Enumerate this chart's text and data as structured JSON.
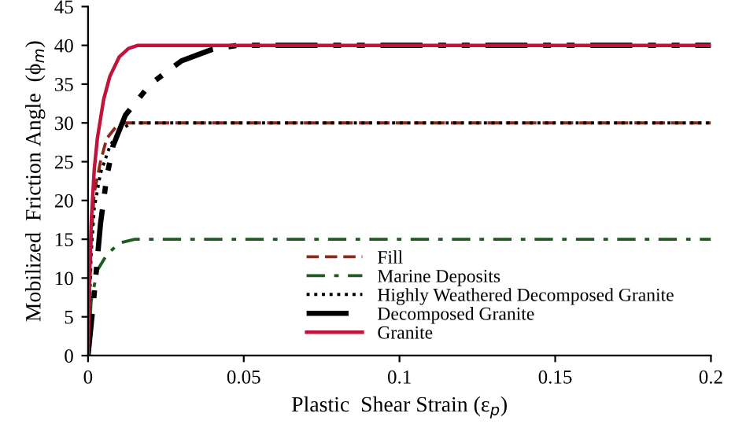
{
  "chart_data": {
    "type": "line",
    "xlabel": "Plastic  Shear Strain (ε$_{p}$)",
    "ylabel": "Mobilized  Friction Angle  (ϕ$_{m}$)",
    "xlim": [
      0,
      0.2
    ],
    "xticks": [
      0,
      0.05,
      0.1,
      0.15,
      0.2
    ],
    "ylim": [
      0,
      45
    ],
    "yticks": [
      0,
      5,
      10,
      15,
      20,
      25,
      30,
      35,
      40,
      45
    ],
    "grid": false,
    "legend": "bottom",
    "marker": "none",
    "series": [
      {
        "name": "Fill",
        "color": "#8b2a1a",
        "line_style": "dashed",
        "x": [
          0,
          0.001,
          0.002,
          0.004,
          0.006,
          0.009,
          0.012,
          0.2
        ],
        "values": [
          0,
          15,
          21,
          25,
          28,
          29.5,
          30,
          30
        ]
      },
      {
        "name": "Marine Deposits",
        "color": "#1f5a1f",
        "line_style": "dashdot",
        "x": [
          0,
          0.001,
          0.003,
          0.006,
          0.01,
          0.015,
          0.2
        ],
        "values": [
          0,
          7,
          11,
          13,
          14.5,
          15,
          15
        ]
      },
      {
        "name": "Highly Weathered Decomposed Granite",
        "color": "#000000",
        "line_style": "dotted",
        "x": [
          0,
          0.001,
          0.002,
          0.004,
          0.007,
          0.01,
          0.014,
          0.2
        ],
        "values": [
          0,
          13,
          19,
          23.5,
          27,
          29,
          30,
          30
        ]
      },
      {
        "name": "Decomposed Granite",
        "color": "#000000",
        "line_style": "dashdotdot",
        "x": [
          0,
          0.002,
          0.004,
          0.006,
          0.008,
          0.012,
          0.02,
          0.03,
          0.04,
          0.048,
          0.2
        ],
        "values": [
          0,
          8,
          17,
          23,
          27,
          31,
          35,
          38,
          39.5,
          40,
          40
        ]
      },
      {
        "name": "Granite",
        "color": "#c0143c",
        "line_style": "solid",
        "x": [
          0,
          0.0005,
          0.001,
          0.002,
          0.003,
          0.005,
          0.007,
          0.01,
          0.013,
          0.016,
          0.2
        ],
        "values": [
          0,
          10,
          17,
          24,
          28,
          33,
          36,
          38.5,
          39.6,
          40,
          40
        ]
      }
    ]
  }
}
